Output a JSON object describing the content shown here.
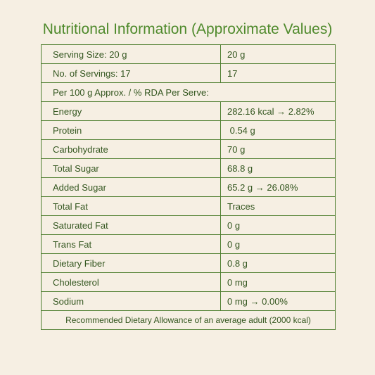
{
  "title": "Nutritional Information (Approximate Values)",
  "rows": [
    {
      "label": "Serving Size: 20 g",
      "value": "20 g"
    },
    {
      "label": "No. of Servings: 17",
      "value": "17"
    }
  ],
  "section_note": "Per 100 g Approx. / % RDA Per Serve:",
  "nutrients": [
    {
      "label": "Energy",
      "value": "282.16 kcal → 2.82%"
    },
    {
      "label": "Protein",
      "value": " 0.54 g"
    },
    {
      "label": "Carbohydrate",
      "value": "70 g"
    },
    {
      "label": "Total Sugar",
      "value": "68.8 g"
    },
    {
      "label": "Added Sugar",
      "value": "65.2 g → 26.08%"
    },
    {
      "label": "Total Fat",
      "value": "Traces"
    },
    {
      "label": "Saturated Fat",
      "value": "0 g"
    },
    {
      "label": "Trans Fat",
      "value": "0 g"
    },
    {
      "label": "Dietary Fiber",
      "value": "0.8 g"
    },
    {
      "label": "Cholesterol",
      "value": "0 mg"
    },
    {
      "label": "Sodium",
      "value": "0 mg → 0.00%"
    }
  ],
  "footer": "Recommended Dietary Allowance of an average adult (2000 kcal)",
  "colors": {
    "background": "#f6efe3",
    "title": "#4f8a2c",
    "border": "#4f7f30",
    "text": "#33561f"
  }
}
